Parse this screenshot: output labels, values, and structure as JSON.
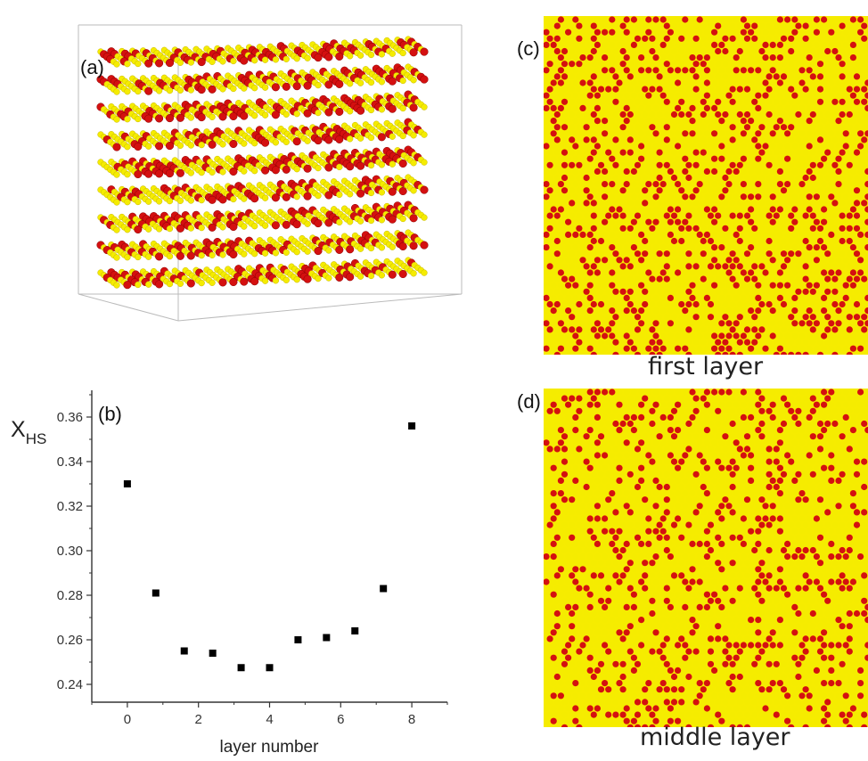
{
  "figure": {
    "panel_labels": {
      "a": "(a)",
      "b": "(b)",
      "c": "(c)",
      "d": "(d)"
    },
    "captions": {
      "c": "first layer",
      "d": "middle layer"
    },
    "colors": {
      "high_spin": "#d41010",
      "low_spin": "#f5ec00",
      "marker": "#000000"
    }
  },
  "panel_a": {
    "description_free": true,
    "layers": 9
  },
  "chart_data": {
    "type": "scatter",
    "title": "",
    "xlabel": "layer number",
    "ylabel_main": "X",
    "ylabel_sub": "HS",
    "xlim": [
      -1,
      9
    ],
    "ylim": [
      0.232,
      0.372
    ],
    "xticks": [
      0,
      2,
      4,
      6,
      8
    ],
    "yticks": [
      0.24,
      0.26,
      0.28,
      0.3,
      0.32,
      0.34,
      0.36
    ],
    "ytick_labels": [
      "0.24",
      "0.26",
      "0.28",
      "0.30",
      "0.32",
      "0.34",
      "0.36"
    ],
    "series": [
      {
        "x": [
          0,
          0.8,
          1.6,
          2.4,
          3.2,
          4.0,
          4.8,
          5.6,
          6.4,
          7.2,
          8.0
        ],
        "y": [
          0.33,
          0.281,
          0.255,
          0.254,
          0.2475,
          0.2475,
          0.26,
          0.261,
          0.264,
          0.283,
          0.356
        ]
      }
    ]
  }
}
